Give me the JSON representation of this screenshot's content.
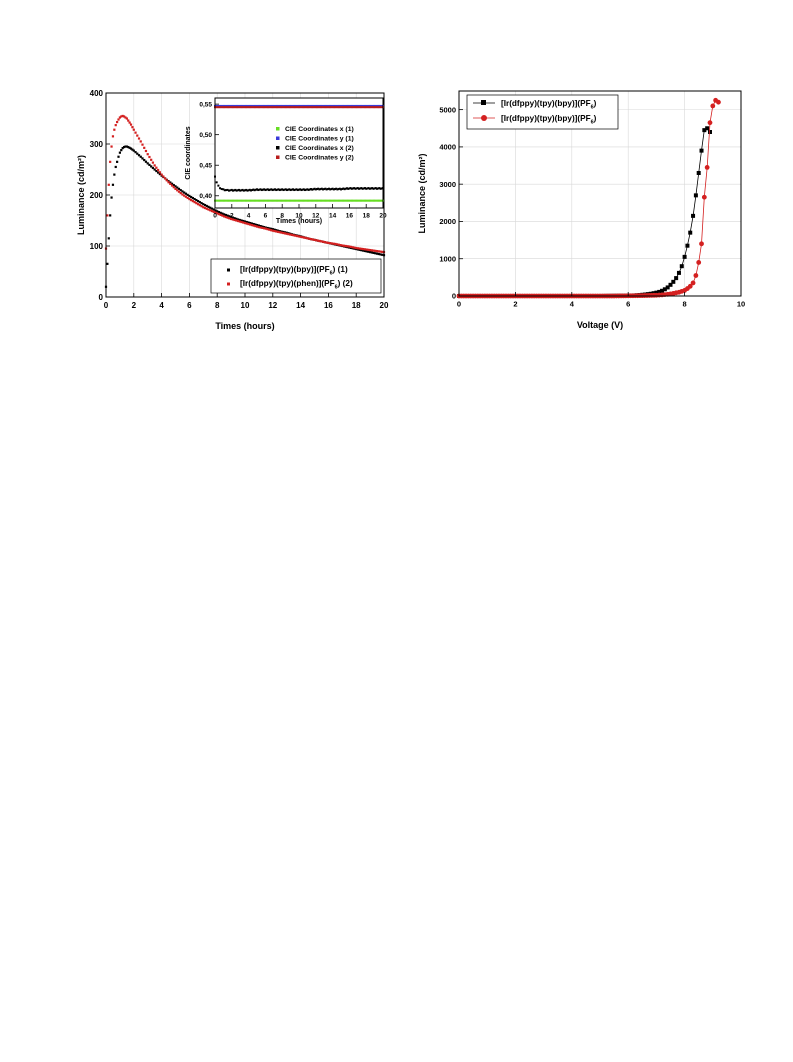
{
  "charts_colors": {
    "black": "#000000",
    "red": "#d42020",
    "green": "#66dd22",
    "blue": "#3a3ad8",
    "darkred": "#b81c1c"
  },
  "chart_data": [
    {
      "type": "scatter",
      "xlabel": "Times (hours)",
      "ylabel": "Luminance (cd/m²)",
      "xlim": [
        0,
        20
      ],
      "ylim": [
        0,
        400
      ],
      "xticks": [
        "0",
        "2",
        "4",
        "6",
        "8",
        "10",
        "12",
        "14",
        "16",
        "18",
        "20"
      ],
      "yticks": [
        "0",
        "100",
        "200",
        "300",
        "400"
      ],
      "grid": true,
      "legend_position": "bottom-right",
      "series": [
        {
          "name": "[Ir(dfppy)(tpy)(bpy)](PF6) (1)",
          "name_main": "[Ir(dfppy)(tpy)(bpy)](PF",
          "name_sub": "6",
          "name_tail": ") (1)",
          "color": "#000000",
          "x": [
            0,
            0.1,
            0.2,
            0.3,
            0.4,
            0.5,
            0.6,
            0.7,
            0.8,
            0.9,
            1.0,
            1.1,
            1.2,
            1.3,
            1.4,
            1.5,
            1.6,
            1.8,
            2,
            2.5,
            3,
            3.5,
            4,
            4.5,
            5,
            5.5,
            6,
            6.5,
            7,
            7.5,
            8,
            8.5,
            9,
            9.5,
            10,
            10.5,
            11,
            11.5,
            12,
            12.5,
            13,
            13.5,
            14,
            14.5,
            15,
            15.5,
            16,
            16.5,
            17,
            17.5,
            18,
            18.5,
            19,
            19.5,
            20
          ],
          "y": [
            20,
            65,
            115,
            160,
            195,
            220,
            240,
            255,
            265,
            275,
            283,
            288,
            292,
            294,
            295,
            295,
            294,
            291,
            287,
            275,
            262,
            250,
            238,
            227,
            217,
            207,
            198,
            190,
            182,
            175,
            168,
            162,
            157,
            152,
            148,
            144,
            140,
            136,
            133,
            129,
            126,
            122,
            119,
            115,
            112,
            109,
            106,
            103,
            100,
            97,
            94,
            91,
            88,
            85,
            82
          ]
        },
        {
          "name": "[Ir(dfppy)(tpy)(phen)](PF6) (2)",
          "name_main": "[Ir(dfppy)(tpy)(phen)](PF",
          "name_sub": "6",
          "name_tail": ") (2)",
          "color": "#d42020",
          "x": [
            0,
            0.1,
            0.2,
            0.3,
            0.4,
            0.5,
            0.6,
            0.7,
            0.8,
            0.9,
            1.0,
            1.1,
            1.2,
            1.3,
            1.4,
            1.5,
            1.6,
            1.8,
            2,
            2.5,
            3,
            3.5,
            4,
            4.5,
            5,
            5.5,
            6,
            6.5,
            7,
            7.5,
            8,
            8.5,
            9,
            9.5,
            10,
            10.5,
            11,
            11.5,
            12,
            12.5,
            13,
            13.5,
            14,
            14.5,
            15,
            15.5,
            16,
            16.5,
            17,
            17.5,
            18,
            18.5,
            19,
            19.5,
            20
          ],
          "y": [
            95,
            160,
            220,
            265,
            295,
            315,
            328,
            337,
            343,
            348,
            352,
            354,
            355,
            354,
            352,
            350,
            346,
            338,
            328,
            305,
            280,
            258,
            240,
            225,
            212,
            201,
            192,
            184,
            176,
            170,
            164,
            158,
            153,
            149,
            145,
            141,
            137,
            134,
            130,
            127,
            124,
            121,
            118,
            115,
            112,
            109,
            106,
            104,
            101,
            99,
            96,
            94,
            92,
            90,
            88
          ]
        }
      ],
      "inset": {
        "type": "scatter",
        "xlabel": "Times (hours)",
        "ylabel": "CIE coordinates",
        "xlim": [
          0,
          20
        ],
        "ylim": [
          0.38,
          0.56
        ],
        "xticks": [
          "0",
          "2",
          "4",
          "6",
          "8",
          "10",
          "12",
          "14",
          "16",
          "18",
          "20"
        ],
        "yticks": [
          "0,40",
          "0,45",
          "0,50",
          "0,55"
        ],
        "ytick_values": [
          0.4,
          0.45,
          0.5,
          0.55
        ],
        "legend_position": "center-right",
        "series": [
          {
            "name": "CIE Coordinates x (1)",
            "color": "#66dd22",
            "x": [
              0,
              2,
              4,
              6,
              8,
              10,
              12,
              14,
              16,
              18,
              20
            ],
            "y": [
              0.392,
              0.392,
              0.392,
              0.392,
              0.392,
              0.392,
              0.392,
              0.392,
              0.392,
              0.392,
              0.392
            ]
          },
          {
            "name": "CIE Coordinates y (1)",
            "color": "#3a3ad8",
            "x": [
              0,
              2,
              4,
              6,
              8,
              10,
              12,
              14,
              16,
              18,
              20
            ],
            "y": [
              0.547,
              0.547,
              0.547,
              0.547,
              0.547,
              0.547,
              0.547,
              0.547,
              0.547,
              0.547,
              0.547
            ]
          },
          {
            "name": "CIE Coordinates x (2)",
            "color": "#000000",
            "x": [
              0,
              0.2,
              0.4,
              0.6,
              0.8,
              1,
              1.5,
              2,
              3,
              4,
              5,
              6,
              7,
              8,
              9,
              10,
              11,
              12,
              13,
              14,
              15,
              16,
              17,
              18,
              19,
              20
            ],
            "y": [
              0.432,
              0.422,
              0.416,
              0.413,
              0.411,
              0.41,
              0.409,
              0.409,
              0.409,
              0.409,
              0.41,
              0.41,
              0.41,
              0.41,
              0.41,
              0.41,
              0.41,
              0.411,
              0.411,
              0.411,
              0.411,
              0.412,
              0.412,
              0.412,
              0.412,
              0.412
            ]
          },
          {
            "name": "CIE Coordinates y (2)",
            "color": "#b81c1c",
            "x": [
              0,
              2,
              4,
              6,
              8,
              10,
              12,
              14,
              16,
              18,
              20
            ],
            "y": [
              0.545,
              0.545,
              0.545,
              0.545,
              0.545,
              0.545,
              0.545,
              0.545,
              0.545,
              0.545,
              0.545
            ]
          }
        ]
      }
    },
    {
      "type": "line",
      "xlabel": "Voltage (V)",
      "ylabel": "Luminance (cd/m²)",
      "xlim": [
        0,
        10
      ],
      "ylim": [
        0,
        5500
      ],
      "xticks": [
        "0",
        "2",
        "4",
        "6",
        "8",
        "10"
      ],
      "yticks": [
        "0",
        "1000",
        "2000",
        "3000",
        "4000",
        "5000"
      ],
      "grid": true,
      "legend_position": "top-left",
      "series": [
        {
          "name": "[Ir(dfppy)(tpy)(bpy)](PF6)",
          "name_main": "[Ir(dfppy)(tpy)(bpy)](PF",
          "name_sub": "6",
          "name_tail": ")",
          "color": "#000000",
          "marker": "square",
          "x": [
            0,
            0.5,
            1,
            1.5,
            2,
            2.5,
            3,
            3.5,
            4,
            4.5,
            5,
            5.5,
            6,
            6.2,
            6.4,
            6.6,
            6.8,
            7.0,
            7.1,
            7.2,
            7.3,
            7.4,
            7.5,
            7.6,
            7.7,
            7.8,
            7.9,
            8.0,
            8.1,
            8.2,
            8.3,
            8.4,
            8.5,
            8.6,
            8.7,
            8.8,
            8.9
          ],
          "y": [
            0,
            0,
            0,
            0,
            0,
            0,
            0,
            0,
            0,
            0,
            0,
            5,
            10,
            15,
            25,
            40,
            60,
            90,
            110,
            140,
            180,
            230,
            300,
            380,
            480,
            620,
            800,
            1050,
            1350,
            1700,
            2150,
            2700,
            3300,
            3900,
            4450,
            4500,
            4400
          ]
        },
        {
          "name": "[Ir(dfppy)(tpy)(bpy)](PF6)",
          "name_main": "[Ir(dfppy)(tpy)(bpy)](PF",
          "name_sub": "6",
          "name_tail": ")",
          "color": "#d42020",
          "marker": "circle",
          "x": [
            0,
            0.5,
            1,
            1.5,
            2,
            2.5,
            3,
            3.5,
            4,
            4.5,
            5,
            5.5,
            6,
            6.5,
            7.0,
            7.2,
            7.4,
            7.6,
            7.8,
            8.0,
            8.1,
            8.2,
            8.3,
            8.4,
            8.5,
            8.6,
            8.7,
            8.8,
            8.9,
            9.0,
            9.1,
            9.2
          ],
          "y": [
            0,
            0,
            0,
            0,
            0,
            0,
            0,
            0,
            0,
            0,
            0,
            0,
            5,
            10,
            20,
            30,
            45,
            70,
            100,
            150,
            200,
            260,
            350,
            550,
            900,
            1400,
            2650,
            3450,
            4650,
            5100,
            5250,
            5200
          ]
        }
      ]
    }
  ]
}
